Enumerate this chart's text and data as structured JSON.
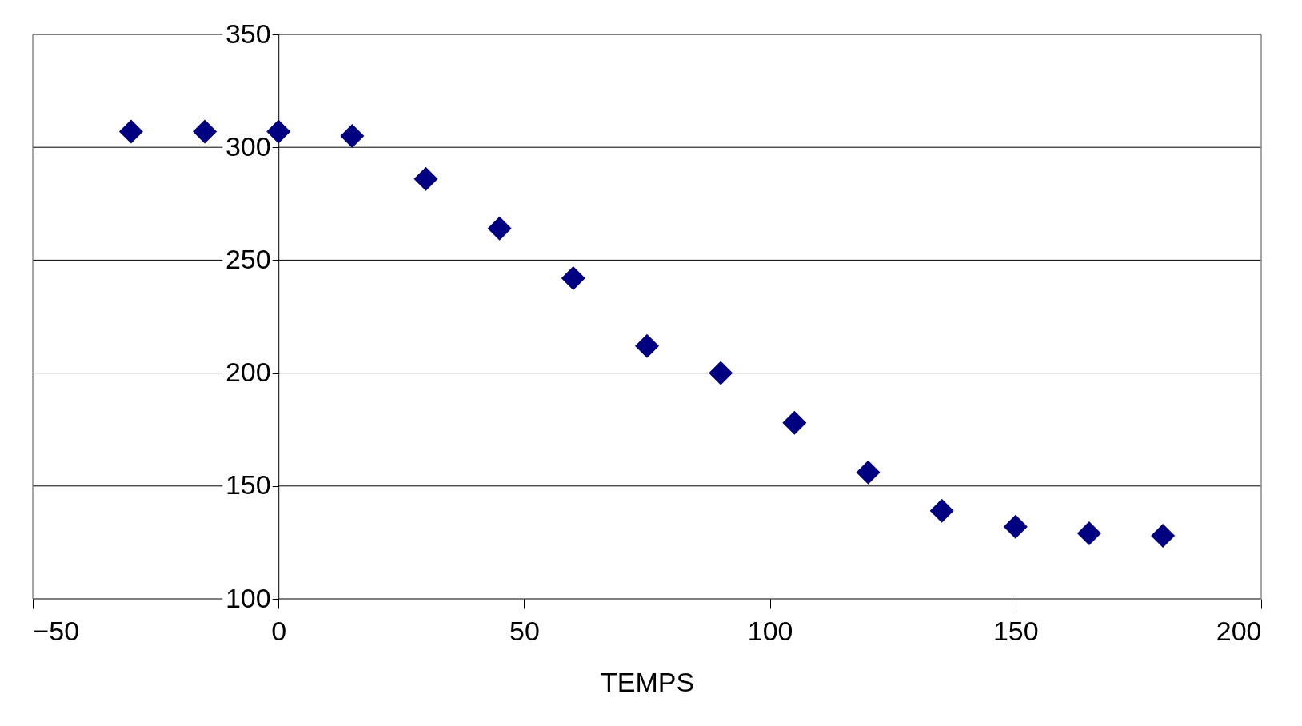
{
  "chart_data": {
    "type": "scatter",
    "xlabel": "TEMPS",
    "x": [
      -30,
      -15,
      0,
      15,
      30,
      45,
      60,
      75,
      90,
      105,
      120,
      135,
      150,
      165,
      180
    ],
    "values": [
      307,
      307,
      307,
      305,
      286,
      264,
      242,
      212,
      200,
      178,
      156,
      139,
      132,
      129,
      128
    ],
    "color": "#000080",
    "marker": "diamond",
    "xlim": [
      -50,
      200
    ],
    "xticks": [
      -50,
      0,
      50,
      100,
      150,
      200
    ],
    "ylim": [
      100,
      350
    ],
    "yticks": [
      100,
      150,
      200,
      250,
      300,
      350
    ],
    "grid": "y"
  }
}
